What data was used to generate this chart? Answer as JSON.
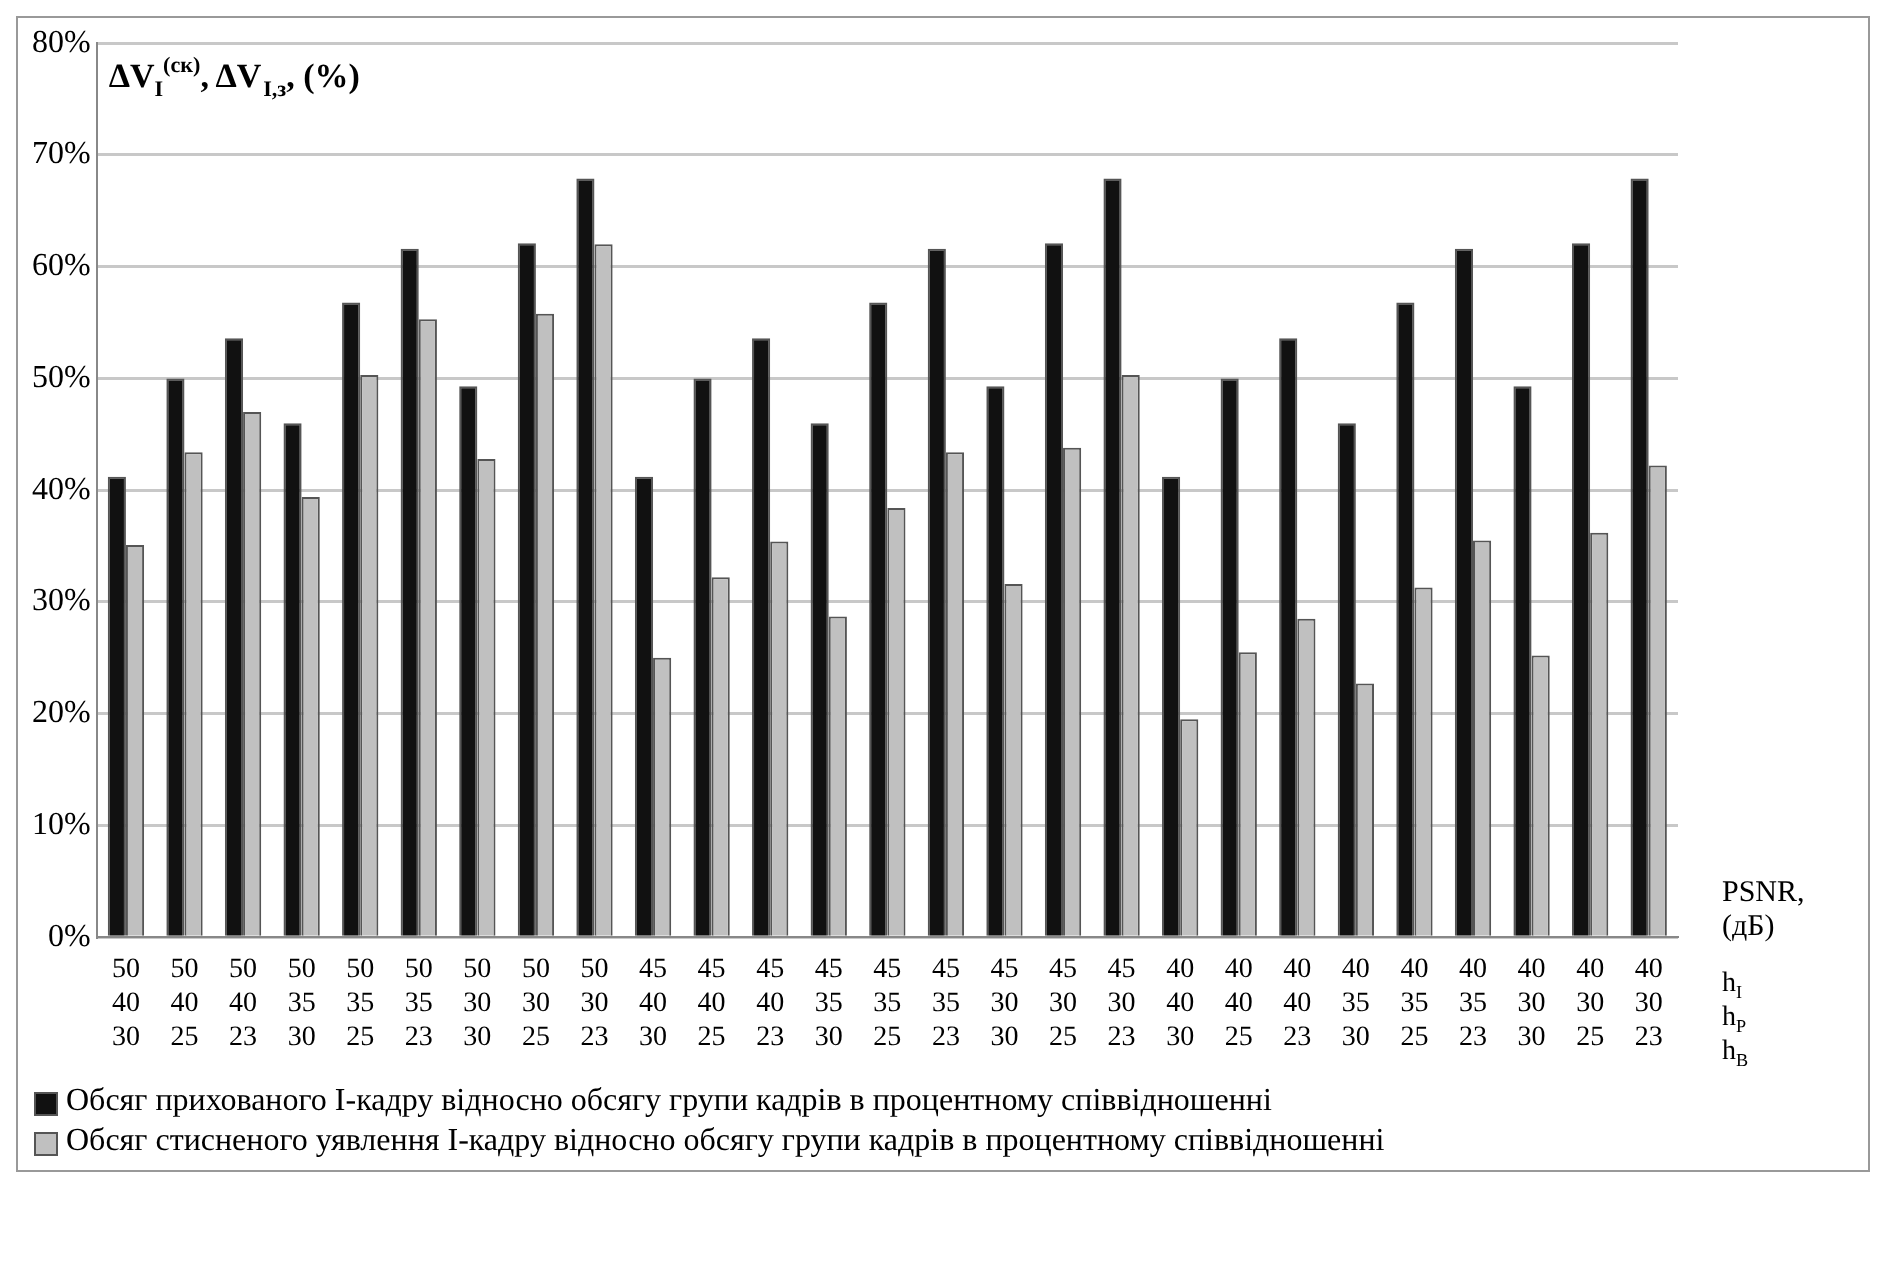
{
  "chart_data": {
    "type": "bar",
    "ylabel": "ΔV$_{I}$$^{(ск)}$, ΔV$_{I,з}$, (%)",
    "xlabel": "PSNR, (дБ)",
    "categories": [
      "50\n40\n30",
      "50\n40\n25",
      "50\n40\n23",
      "50\n35\n30",
      "50\n35\n25",
      "50\n35\n23",
      "50\n30\n30",
      "50\n30\n25",
      "50\n30\n23",
      "45\n40\n30",
      "45\n40\n25",
      "45\n40\n23",
      "45\n35\n30",
      "45\n35\n25",
      "45\n35\n23",
      "45\n30\n30",
      "45\n30\n25",
      "45\n30\n23",
      "40\n40\n30",
      "40\n40\n25",
      "40\n40\n23",
      "40\n35\n30",
      "40\n35\n25",
      "40\n35\n23",
      "40\n30\n30",
      "40\n30\n25",
      "40\n30\n23"
    ],
    "series": [
      {
        "name": "Обсяг прихованого І-кадру відносно обсягу групи кадрів в процентному співвідношенні",
        "color": "#111111",
        "values": [
          41.2,
          50,
          53.6,
          46,
          56.8,
          61.6,
          49.3,
          62.1,
          67.9,
          41.2,
          50,
          53.6,
          46,
          56.8,
          61.6,
          49.3,
          62.1,
          67.9,
          41.2,
          50,
          53.6,
          46,
          56.8,
          61.6,
          49.3,
          62.1,
          67.9
        ]
      },
      {
        "name": "Обсяг стисненого уявлення І-кадру відносно обсягу групи кадрів в процентному співвідношенні",
        "color": "#c0c0c0",
        "values": [
          35.1,
          43.4,
          47,
          39.4,
          50.3,
          55.3,
          42.8,
          55.8,
          62,
          25,
          32.2,
          35.4,
          28.7,
          38.4,
          43.4,
          31.6,
          43.8,
          50.3,
          19.5,
          25.5,
          28.5,
          22.7,
          31.3,
          35.5,
          25.2,
          36.2,
          42.2
        ]
      }
    ],
    "annotations": [
      "h$_{I}$",
      "h$_{P}$",
      "h$_{B}$"
    ],
    "ylim": [
      0,
      80
    ],
    "yticks": [
      {
        "value": 0,
        "label": "0%"
      },
      {
        "value": 10,
        "label": "10%"
      },
      {
        "value": 20,
        "label": "20%"
      },
      {
        "value": 30,
        "label": "30%"
      },
      {
        "value": 40,
        "label": "40%"
      },
      {
        "value": 50,
        "label": "50%"
      },
      {
        "value": 60,
        "label": "60%"
      },
      {
        "value": 70,
        "label": "70%"
      },
      {
        "value": 80,
        "label": "80%"
      }
    ],
    "grid": "y",
    "legend": "bottom"
  }
}
